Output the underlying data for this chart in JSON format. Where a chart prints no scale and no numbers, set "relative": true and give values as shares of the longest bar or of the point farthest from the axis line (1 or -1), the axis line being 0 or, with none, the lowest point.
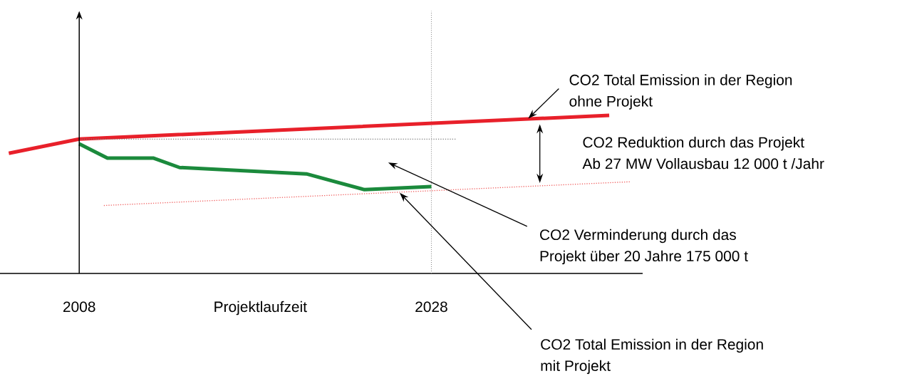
{
  "chart_data": {
    "type": "line",
    "relative": true,
    "xlabel": "Projektlaufzeit",
    "xlim": [
      2003.5,
      2040
    ],
    "xticks": [
      2008,
      2028
    ],
    "series": [
      {
        "color": "#e8202a",
        "x": [
          2004,
          2008,
          2038.1
        ],
        "values": [
          0.76,
          0.85,
          1.0
        ]
      },
      {
        "color": "#1b8a3c",
        "x": [
          2008,
          2009.6,
          2012.2,
          2013.7,
          2020.9,
          2024.2,
          2028
        ],
        "values": [
          0.82,
          0.73,
          0.73,
          0.67,
          0.63,
          0.53,
          0.55
        ]
      },
      {
        "color": "#f06060",
        "line_style": "dotted",
        "x": [
          2009.4,
          2039.3
        ],
        "values": [
          0.43,
          0.58
        ]
      },
      {
        "color": "#808080",
        "line_style": "dotted",
        "x": [
          2008,
          2029.4
        ],
        "values": [
          0.85,
          0.85
        ]
      }
    ],
    "ref_lines": [
      {
        "axis": "x",
        "value": 2028,
        "color": "#808080",
        "line_style": "dotted"
      }
    ],
    "annotations": [
      {
        "text": "CO2 Total Emission in der Region",
        "x": 2033.5,
        "y": 0.98
      },
      "ohne Projekt",
      "CO2 Reduktion durch das Projekt",
      "Ab 27 MW Vollausbau 12 000 t /Jahr",
      "CO2 Verminderung durch das",
      "Projekt über 20 Jahre 175 000 t",
      {
        "text": "CO2 Total Emission in der Region",
        "x": 2026.2,
        "y": 0.51
      },
      "mit Projekt"
    ]
  }
}
